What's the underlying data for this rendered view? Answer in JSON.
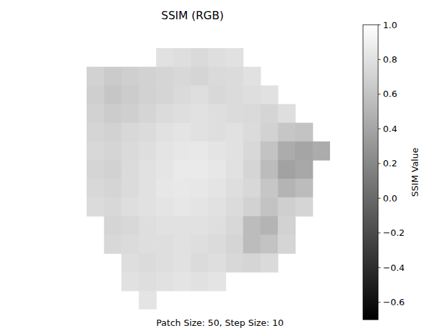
{
  "chart_data": {
    "type": "heatmap",
    "title": "SSIM (RGB)",
    "xlabel": "Patch Size: 50, Step Size: 10",
    "tick_labels": false,
    "cells": [
      [
        null,
        null,
        null,
        null,
        0.8,
        0.78,
        0.75,
        0.78,
        0.8,
        null,
        null,
        null,
        null,
        null
      ],
      [
        0.7,
        0.65,
        0.68,
        0.7,
        0.72,
        0.74,
        0.72,
        0.75,
        0.76,
        0.8,
        null,
        null,
        null,
        null
      ],
      [
        0.68,
        0.62,
        0.66,
        0.7,
        0.72,
        0.75,
        0.78,
        0.74,
        0.76,
        0.78,
        0.8,
        null,
        null,
        null
      ],
      [
        0.7,
        0.66,
        0.68,
        0.72,
        0.76,
        0.78,
        0.8,
        0.78,
        0.76,
        0.75,
        0.72,
        0.78,
        null,
        null
      ],
      [
        0.72,
        0.7,
        0.74,
        0.76,
        0.8,
        0.82,
        0.8,
        0.78,
        0.8,
        0.76,
        0.7,
        0.62,
        0.6,
        null
      ],
      [
        0.74,
        0.72,
        0.75,
        0.78,
        0.82,
        0.84,
        0.85,
        0.82,
        0.8,
        0.74,
        0.6,
        0.45,
        0.4,
        0.45
      ],
      [
        0.72,
        0.7,
        0.76,
        0.8,
        0.83,
        0.86,
        0.86,
        0.84,
        0.8,
        0.72,
        0.55,
        0.38,
        0.42,
        null
      ],
      [
        0.74,
        0.72,
        0.76,
        0.8,
        0.84,
        0.85,
        0.84,
        0.82,
        0.78,
        0.74,
        0.62,
        0.5,
        0.55,
        null
      ],
      [
        0.76,
        0.74,
        0.78,
        0.8,
        0.82,
        0.84,
        0.82,
        0.8,
        0.76,
        0.7,
        0.6,
        0.68,
        0.72,
        null
      ],
      [
        null,
        0.72,
        0.74,
        0.78,
        0.8,
        0.8,
        0.8,
        0.78,
        0.74,
        0.55,
        0.5,
        0.7,
        null,
        null
      ],
      [
        null,
        0.74,
        0.76,
        0.78,
        0.78,
        0.8,
        0.78,
        0.76,
        0.72,
        0.55,
        0.6,
        0.72,
        null,
        null
      ],
      [
        null,
        null,
        0.78,
        0.76,
        0.78,
        0.8,
        0.76,
        0.78,
        0.74,
        0.72,
        0.75,
        null,
        null,
        null
      ],
      [
        null,
        null,
        0.8,
        0.78,
        0.8,
        0.82,
        0.8,
        0.82,
        null,
        null,
        null,
        null,
        null,
        null
      ],
      [
        null,
        null,
        null,
        0.82,
        null,
        null,
        null,
        null,
        null,
        null,
        null,
        null,
        null,
        null
      ]
    ],
    "colorbar": {
      "label": "SSIM Value",
      "range": [
        -0.7,
        1.0
      ],
      "ticks": [
        {
          "value": 1.0,
          "label": "1.0"
        },
        {
          "value": 0.8,
          "label": "0.8"
        },
        {
          "value": 0.6,
          "label": "0.6"
        },
        {
          "value": 0.4,
          "label": "0.4"
        },
        {
          "value": 0.2,
          "label": "0.2"
        },
        {
          "value": 0.0,
          "label": "0.0"
        },
        {
          "value": -0.2,
          "label": "−0.2"
        },
        {
          "value": -0.4,
          "label": "−0.4"
        },
        {
          "value": -0.6,
          "label": "−0.6"
        }
      ]
    }
  }
}
